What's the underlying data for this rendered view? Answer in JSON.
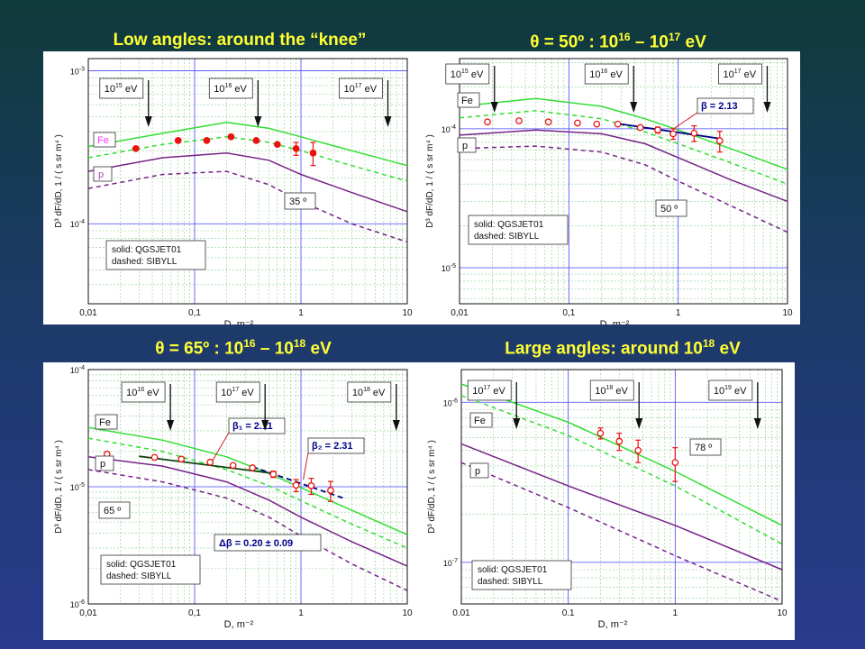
{
  "headings": [
    {
      "pre": "Low angles: around the “knee”",
      "sup1": "",
      "mid": "",
      "sup2": "",
      "post": ""
    },
    {
      "pre": "θ = 50º : 10",
      "sup1": "16",
      "mid": " – 10",
      "sup2": "17",
      "post": " eV"
    },
    {
      "pre": "θ = 65º : 10",
      "sup1": "16",
      "mid": " – 10",
      "sup2": "18",
      "post": " eV"
    },
    {
      "pre": "Large angles: around 10",
      "sup1": "18",
      "mid": " eV",
      "sup2": "",
      "post": ""
    }
  ],
  "colors": {
    "fe": "#33dd33",
    "p": "#772288",
    "data": "#ee1111",
    "fit": "#000088",
    "energy_arrow": "#111111",
    "grid_major": "#4444ff",
    "grid_minor": "#88cc88"
  },
  "chart_data": [
    {
      "type": "line",
      "title": "",
      "xlabel": "D, m⁻²",
      "ylabel": "D³ dF/dD, 1 / ( s sr m⁴ )",
      "x_scale": "log",
      "y_scale": "log",
      "xlim": [
        0.01,
        10
      ],
      "ylim": [
        3e-05,
        0.0012
      ],
      "x_ticks": [
        "0,01",
        "0,1",
        "1",
        "10"
      ],
      "y_ticks": [
        {
          "v": 0.0001,
          "label": "10-4"
        },
        {
          "v": 0.001,
          "label": "10-3"
        }
      ],
      "angle_label": "35 º",
      "legend": [
        "solid: QGSJET01",
        "dashed: SIBYLL"
      ],
      "fe_label": "Fe",
      "p_label": "p",
      "fe_label_color": "#ff33ff",
      "energy_markers": [
        {
          "label_base": "10",
          "label_exp": "15",
          "label_unit": " eV",
          "x": 0.028
        },
        {
          "label_base": "10",
          "label_exp": "16",
          "label_unit": " eV",
          "x": 0.3
        },
        {
          "label_base": "10",
          "label_exp": "17",
          "label_unit": " eV",
          "x": 5.0
        }
      ],
      "series": [
        {
          "name": "Fe",
          "style": "solid",
          "x": [
            0.01,
            0.05,
            0.2,
            0.5,
            1,
            3,
            10
          ],
          "y": [
            0.00032,
            0.00039,
            0.00046,
            0.00042,
            0.00037,
            0.0003,
            0.00024
          ]
        },
        {
          "name": "Fe",
          "style": "dashed",
          "x": [
            0.01,
            0.05,
            0.2,
            0.5,
            1,
            3,
            10
          ],
          "y": [
            0.00027,
            0.00033,
            0.00037,
            0.00034,
            0.0003,
            0.00024,
            0.00019
          ]
        },
        {
          "name": "p",
          "style": "solid",
          "x": [
            0.01,
            0.05,
            0.2,
            0.5,
            1,
            3,
            10
          ],
          "y": [
            0.00022,
            0.00027,
            0.00029,
            0.00026,
            0.00021,
            0.00016,
            0.00012
          ]
        },
        {
          "name": "p",
          "style": "dashed",
          "x": [
            0.01,
            0.05,
            0.2,
            0.5,
            1,
            3,
            10
          ],
          "y": [
            0.00017,
            0.00021,
            0.00022,
            0.00018,
            0.00014,
            0.0001,
            7.6e-05
          ]
        }
      ],
      "points": {
        "filled": true,
        "x": [
          0.028,
          0.07,
          0.13,
          0.22,
          0.38,
          0.6,
          0.9,
          1.3
        ],
        "y": [
          0.00031,
          0.00035,
          0.00035,
          0.00037,
          0.00035,
          0.00033,
          0.00031,
          0.00029
        ],
        "err": [
          0,
          0,
          0,
          0,
          0,
          0,
          3e-05,
          5e-05
        ]
      },
      "fits": []
    },
    {
      "type": "line",
      "title": "",
      "xlabel": "D, m⁻²",
      "ylabel": "D³ dF/dD, 1 / ( s sr m⁴ )",
      "x_scale": "log",
      "y_scale": "log",
      "xlim": [
        0.01,
        10
      ],
      "ylim": [
        5.5e-06,
        0.00032
      ],
      "x_ticks": [
        "0,01",
        "0,1",
        "1",
        "10"
      ],
      "y_ticks": [
        {
          "v": 1e-05,
          "label": "10-5"
        },
        {
          "v": 0.0001,
          "label": "10-4"
        }
      ],
      "angle_label": "50 º",
      "legend": [
        "solid: QGSJET01",
        "dashed: SIBYLL"
      ],
      "fe_label": "Fe",
      "p_label": "p",
      "fe_label_color": "#111111",
      "energy_markers": [
        {
          "label_base": "10",
          "label_exp": "15",
          "label_unit": " eV",
          "x": 0.016
        },
        {
          "label_base": "10",
          "label_exp": "16",
          "label_unit": " eV",
          "x": 0.3
        },
        {
          "label_base": "10",
          "label_exp": "17",
          "label_unit": " eV",
          "x": 5.0
        }
      ],
      "series": [
        {
          "name": "Fe",
          "style": "solid",
          "x": [
            0.01,
            0.05,
            0.2,
            0.5,
            1,
            3,
            10
          ],
          "y": [
            0.000145,
            0.000165,
            0.000145,
            0.000118,
            9.8e-05,
            7.2e-05,
            5.1e-05
          ]
        },
        {
          "name": "Fe",
          "style": "dashed",
          "x": [
            0.01,
            0.05,
            0.2,
            0.5,
            1,
            3,
            10
          ],
          "y": [
            0.00012,
            0.000135,
            0.000118,
            9.5e-05,
            7.8e-05,
            5.7e-05,
            4e-05
          ]
        },
        {
          "name": "p",
          "style": "solid",
          "x": [
            0.01,
            0.05,
            0.2,
            0.5,
            1,
            3,
            10
          ],
          "y": [
            9e-05,
            9.8e-05,
            9.2e-05,
            7.8e-05,
            6.2e-05,
            4.3e-05,
            3e-05
          ]
        },
        {
          "name": "p",
          "style": "dashed",
          "x": [
            0.01,
            0.05,
            0.2,
            0.5,
            1,
            3,
            10
          ],
          "y": [
            7.2e-05,
            7.5e-05,
            6.8e-05,
            5.5e-05,
            4.2e-05,
            2.8e-05,
            1.8e-05
          ]
        }
      ],
      "points": {
        "filled": false,
        "x": [
          0.018,
          0.035,
          0.065,
          0.12,
          0.18,
          0.28,
          0.45,
          0.65,
          0.9,
          1.4,
          2.4
        ],
        "y": [
          0.000112,
          0.000114,
          0.000112,
          0.00011,
          0.000108,
          0.000108,
          0.000102,
          9.8e-05,
          9.2e-05,
          9.3e-05,
          8.2e-05
        ],
        "err": [
          0,
          0,
          0,
          0,
          0,
          0,
          0,
          5e-06,
          8e-06,
          1.2e-05,
          1.4e-05
        ]
      },
      "fits": [
        {
          "label": "β = 2.13",
          "x": [
            0.28,
            2.4
          ],
          "y": [
            0.000109,
            8.5e-05
          ],
          "style": "solid"
        }
      ]
    },
    {
      "type": "line",
      "title": "",
      "xlabel": "D, m⁻²",
      "ylabel": "D³ dF/dD, 1 / ( s sr m⁴ )",
      "x_scale": "log",
      "y_scale": "log",
      "xlim": [
        0.01,
        10
      ],
      "ylim": [
        1e-06,
        0.0001
      ],
      "x_ticks": [
        "0,01",
        "0,1",
        "1",
        "10"
      ],
      "y_ticks": [
        {
          "v": 1e-06,
          "label": "10-6"
        },
        {
          "v": 1e-05,
          "label": "10-5"
        },
        {
          "v": 0.0001,
          "label": "10-4"
        }
      ],
      "angle_label": "65 º",
      "legend": [
        "solid: QGSJET01",
        "dashed: SIBYLL"
      ],
      "fe_label": "Fe",
      "p_label": "p",
      "fe_label_color": "#111111",
      "delta_beta": "Δβ = 0.20 ± 0.09",
      "energy_markers": [
        {
          "label_base": "10",
          "label_exp": "16",
          "label_unit": " eV",
          "x": 0.045
        },
        {
          "label_base": "10",
          "label_exp": "17",
          "label_unit": " eV",
          "x": 0.35
        },
        {
          "label_base": "10",
          "label_exp": "18",
          "label_unit": " eV",
          "x": 6.0
        }
      ],
      "series": [
        {
          "name": "Fe",
          "style": "solid",
          "x": [
            0.01,
            0.05,
            0.2,
            0.5,
            1,
            3,
            10
          ],
          "y": [
            3.2e-05,
            2.5e-05,
            1.8e-05,
            1.3e-05,
            9.8e-06,
            6.3e-06,
            3.9e-06
          ]
        },
        {
          "name": "Fe",
          "style": "dashed",
          "x": [
            0.01,
            0.05,
            0.2,
            0.5,
            1,
            3,
            10
          ],
          "y": [
            2.6e-05,
            2e-05,
            1.4e-05,
            1.02e-05,
            7.6e-06,
            4.8e-06,
            3e-06
          ]
        },
        {
          "name": "p",
          "style": "solid",
          "x": [
            0.01,
            0.05,
            0.2,
            0.5,
            1,
            3,
            10
          ],
          "y": [
            1.8e-05,
            1.5e-05,
            1.1e-05,
            7.7e-06,
            5.5e-06,
            3.4e-06,
            2.1e-06
          ]
        },
        {
          "name": "p",
          "style": "dashed",
          "x": [
            0.01,
            0.05,
            0.2,
            0.5,
            1,
            3,
            10
          ],
          "y": [
            1.4e-05,
            1.1e-05,
            8e-06,
            5.5e-06,
            3.8e-06,
            2.2e-06,
            1.3e-06
          ]
        }
      ],
      "points": {
        "filled": false,
        "x": [
          0.015,
          0.042,
          0.075,
          0.14,
          0.23,
          0.35,
          0.55,
          0.9,
          1.25,
          1.9
        ],
        "y": [
          1.9e-05,
          1.78e-05,
          1.72e-05,
          1.62e-05,
          1.52e-05,
          1.45e-05,
          1.28e-05,
          1.03e-05,
          1.02e-05,
          9.3e-06
        ],
        "err": [
          0,
          0,
          0,
          0,
          0,
          0,
          8e-07,
          1.2e-06,
          1.6e-06,
          1.8e-06
        ]
      },
      "fits": [
        {
          "label": "β₁ = 2.11",
          "x": [
            0.03,
            0.55
          ],
          "y": [
            1.82e-05,
            1.3e-05
          ],
          "style": "solid"
        },
        {
          "label": "β₂ = 2.31",
          "x": [
            0.35,
            2.5
          ],
          "y": [
            1.48e-05,
            8e-06
          ],
          "style": "dashed"
        }
      ]
    },
    {
      "type": "line",
      "title": "",
      "xlabel": "D, m⁻²",
      "ylabel": "D³ dF/dD, 1 / ( s sr m⁴ )",
      "x_scale": "log",
      "y_scale": "log",
      "xlim": [
        0.01,
        10
      ],
      "ylim": [
        5.5e-08,
        1.6e-06
      ],
      "x_ticks": [
        "0.01",
        "0.1",
        "1",
        "10"
      ],
      "y_ticks": [
        {
          "v": 1e-07,
          "label": "10-7"
        },
        {
          "v": 1e-06,
          "label": "10-6"
        }
      ],
      "angle_label": "78 º",
      "legend": [
        "solid: QGSJET01",
        "dashed: SIBYLL"
      ],
      "fe_label": "Fe",
      "p_label": "p",
      "fe_label_color": "#111111",
      "energy_markers": [
        {
          "label_base": "10",
          "label_exp": "17",
          "label_unit": " eV",
          "x": 0.025
        },
        {
          "label_base": "10",
          "label_exp": "18",
          "label_unit": " eV",
          "x": 0.35
        },
        {
          "label_base": "10",
          "label_exp": "19",
          "label_unit": " eV",
          "x": 4.5
        }
      ],
      "series": [
        {
          "name": "Fe",
          "style": "solid",
          "x": [
            0.01,
            0.1,
            1,
            10
          ],
          "y": [
            1.3e-06,
            7.5e-07,
            3.7e-07,
            1.7e-07
          ]
        },
        {
          "name": "Fe",
          "style": "dashed",
          "x": [
            0.01,
            0.1,
            1,
            10
          ],
          "y": [
            1.1e-06,
            6.2e-07,
            3e-07,
            1.3e-07
          ]
        },
        {
          "name": "p",
          "style": "solid",
          "x": [
            0.01,
            0.1,
            1,
            10
          ],
          "y": [
            5.5e-07,
            3e-07,
            1.7e-07,
            9e-08
          ]
        },
        {
          "name": "p",
          "style": "dashed",
          "x": [
            0.01,
            0.1,
            1,
            10
          ],
          "y": [
            4.2e-07,
            2.2e-07,
            1.1e-07,
            5.7e-08
          ]
        }
      ],
      "points": {
        "filled": false,
        "x": [
          0.2,
          0.3,
          0.45,
          1.0
        ],
        "y": [
          6.4e-07,
          5.7e-07,
          5e-07,
          4.2e-07
        ],
        "err": [
          5e-08,
          7e-08,
          8e-08,
          1e-07
        ]
      },
      "fits": []
    }
  ]
}
